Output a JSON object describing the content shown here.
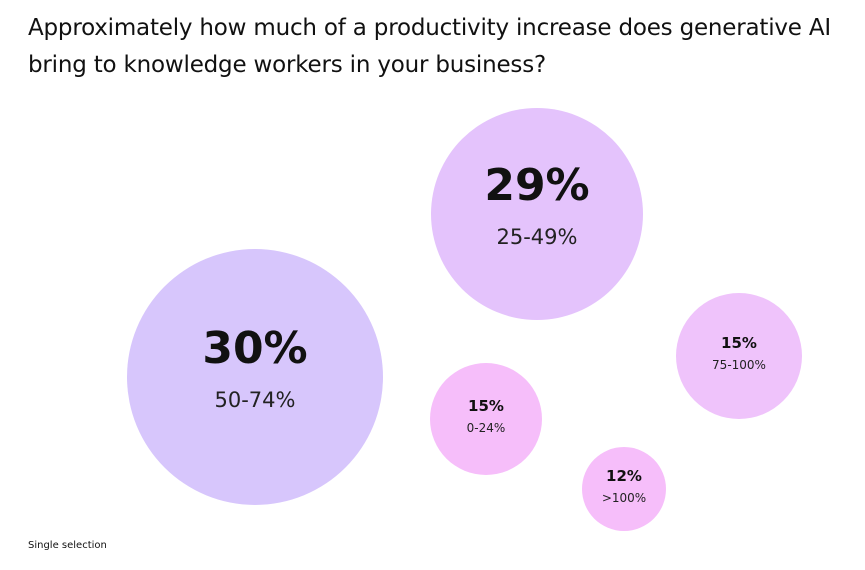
{
  "title": "Approximately how much of a productivity increase does generative AI bring to knowledge workers in your business?",
  "footnote": "Single selection",
  "colors": {
    "violet": "#d7c6fc",
    "lavender": "#e4c3fc",
    "lilac": "#efc3fb",
    "pink": "#f6befa"
  },
  "chart_data": {
    "type": "bubble",
    "title": "Approximately how much of a productivity increase does generative AI bring to knowledge workers in your business?",
    "unit": "%",
    "bubbles": [
      {
        "category": "50-74%",
        "value": 30,
        "label": "30%",
        "color": "#d7c6fc"
      },
      {
        "category": "25-49%",
        "value": 29,
        "label": "29%",
        "color": "#e4c3fc"
      },
      {
        "category": "75-100%",
        "value": 15,
        "label": "15%",
        "color": "#efc3fb"
      },
      {
        "category": "0-24%",
        "value": 15,
        "label": "15%",
        "color": "#f6befa"
      },
      {
        "category": ">100%",
        "value": 12,
        "label": "12%",
        "color": "#f6befa"
      }
    ]
  }
}
